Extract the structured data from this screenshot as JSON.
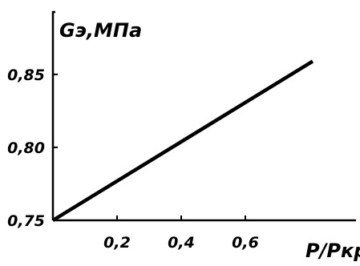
{
  "chart_data": {
    "type": "line",
    "xlabel": "P/Pкр",
    "ylabel": "Gэ,МПа",
    "x_ticks": [
      0.2,
      0.4,
      0.6
    ],
    "x_tick_labels": [
      "0,2",
      "0,4",
      "0,6"
    ],
    "y_ticks": [
      0.75,
      0.8,
      0.85
    ],
    "y_tick_labels": [
      "0,75",
      "0,80",
      "0,85"
    ],
    "xlim": [
      0,
      0.9
    ],
    "ylim": [
      0.75,
      0.89
    ],
    "grid": false,
    "series": [
      {
        "x": [
          0.0,
          0.81
        ],
        "y": [
          0.75,
          0.859
        ],
        "color": "#000000"
      }
    ]
  }
}
